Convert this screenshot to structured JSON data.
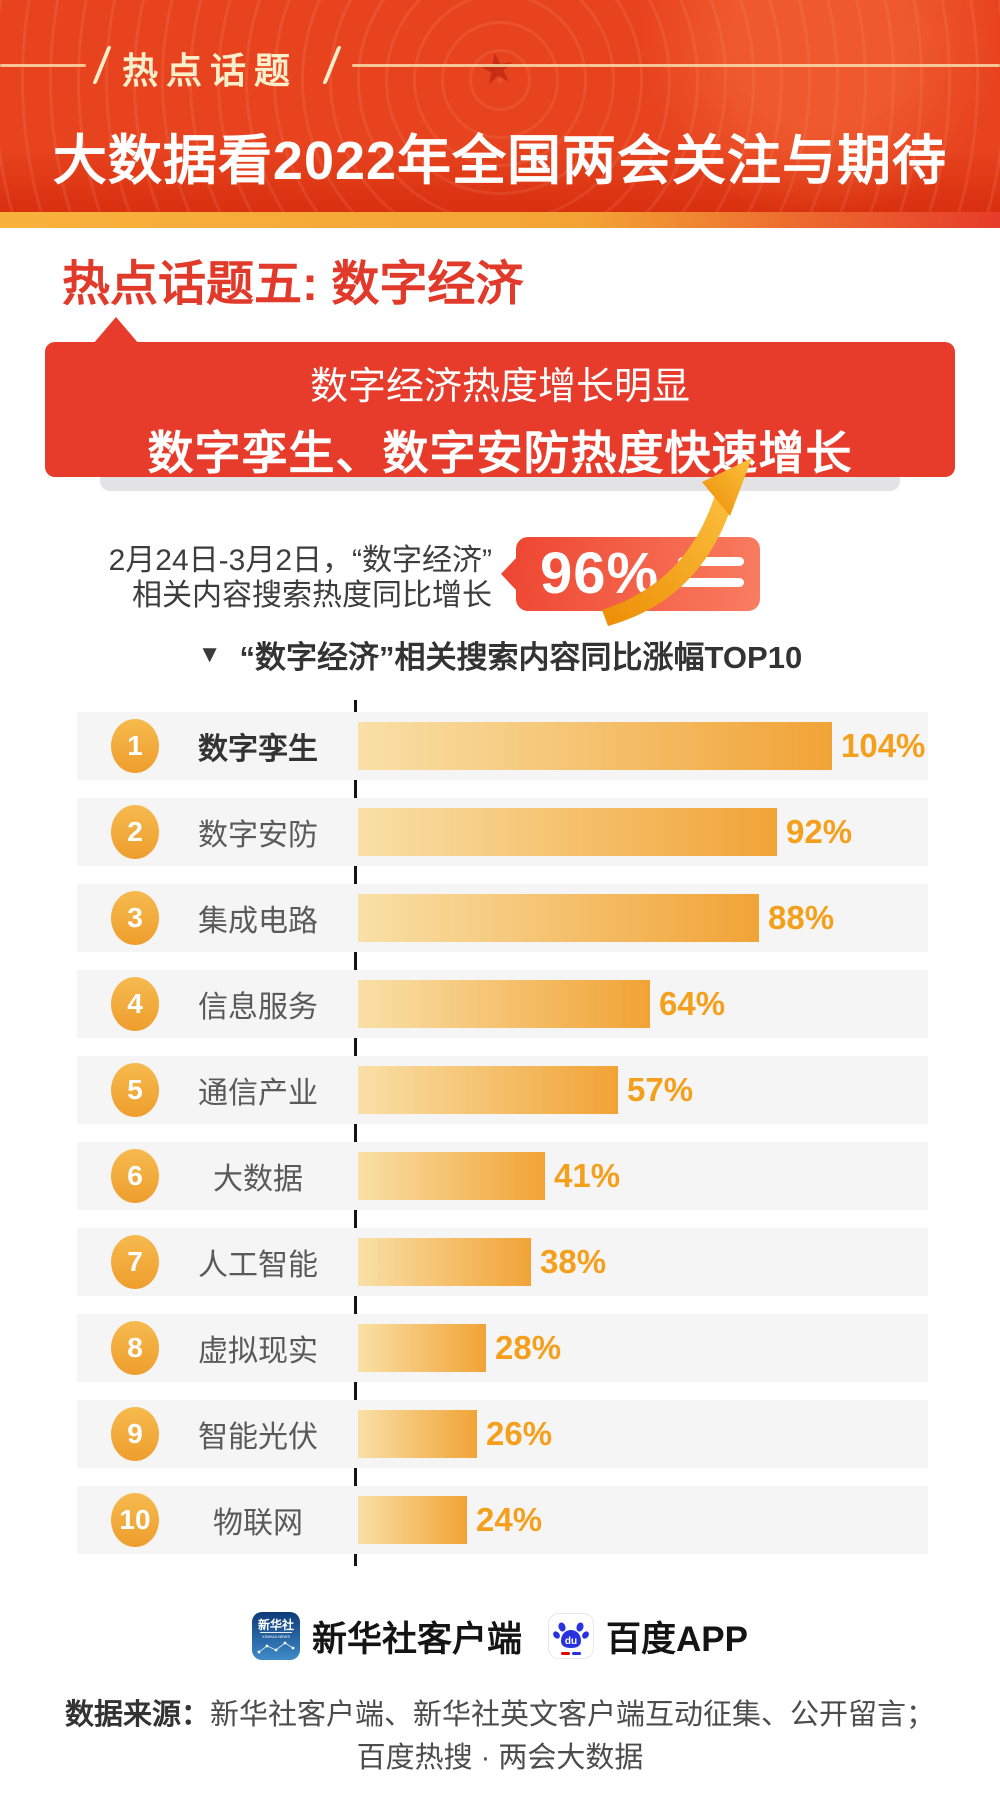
{
  "header": {
    "badge": "热点话题",
    "title": "大数据看2022年全国两会关注与期待"
  },
  "section": {
    "heading": "热点话题五: 数字经济"
  },
  "banner": {
    "line1": "数字经济热度增长明显",
    "line2": "数字孪生、数字安防热度快速增长"
  },
  "stat": {
    "desc_line1": "2月24日-3月2日，“数字经济”",
    "desc_line2": "相关内容搜索热度同比增长",
    "value": "96%"
  },
  "chart_data": {
    "type": "bar",
    "orientation": "horizontal",
    "title_marker": "▼",
    "title": "“数字经济”相关搜索内容同比涨幅TOP10",
    "categories": [
      "数字孪生",
      "数字安防",
      "集成电路",
      "信息服务",
      "通信产业",
      "大数据",
      "人工智能",
      "虚拟现实",
      "智能光伏",
      "物联网"
    ],
    "values": [
      104,
      92,
      88,
      64,
      57,
      41,
      38,
      28,
      26,
      24
    ],
    "value_labels": [
      "104%",
      "92%",
      "88%",
      "64%",
      "57%",
      "41%",
      "38%",
      "28%",
      "26%",
      "24%"
    ],
    "ranks": [
      "1",
      "2",
      "3",
      "4",
      "5",
      "6",
      "7",
      "8",
      "9",
      "10"
    ],
    "unit": "%",
    "xlim": [
      0,
      110
    ],
    "grid": false,
    "legend": false,
    "bar_gradient": [
      "#f9e0a7",
      "#f1a336"
    ],
    "value_label_color": "#f5a01d",
    "rank_badge_color": "#efa434",
    "row_background": "#f5f5f6"
  },
  "footer": {
    "xinhua": {
      "icon_text": "新华社",
      "icon_subtext": "XINHUA NEWS",
      "label": "新华社客户端"
    },
    "baidu": {
      "icon_text": "du",
      "label": "百度APP"
    },
    "source_label": "数据来源：",
    "source_line1": "新华社客户端、新华社英文客户端互动征集、公开留言；",
    "source_line2": "百度热搜 · 两会大数据"
  },
  "colors": {
    "header_red": "#e8431f",
    "badge_cream": "#fbeecb",
    "strip_gold": "#f3a435",
    "heading_red": "#e23a2a",
    "banner_red": "#e73c2b",
    "stat_badge_gradient": [
      "#ee4733",
      "#f97d61"
    ],
    "arrow_gold": "#f2970f",
    "text_dark": "#3d3d3d"
  }
}
